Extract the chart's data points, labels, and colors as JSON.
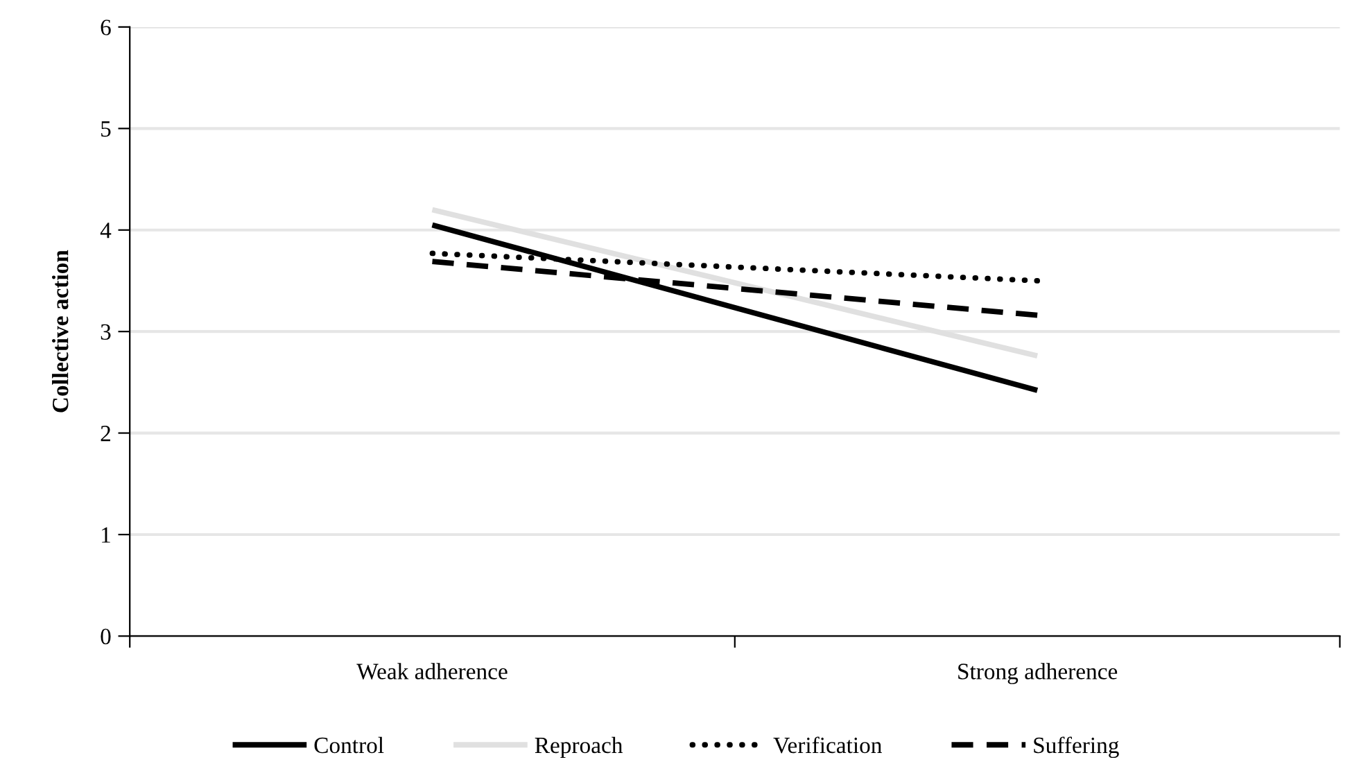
{
  "chart_data": {
    "type": "line",
    "ylabel": "Collective action",
    "categories": [
      "Weak adherence",
      "Strong adherence"
    ],
    "series": [
      {
        "name": "Control",
        "color": "#000000",
        "values": [
          4.05,
          2.42
        ],
        "line_style": "solid"
      },
      {
        "name": "Reproach",
        "color": "#e0e0e0",
        "values": [
          4.2,
          2.76
        ],
        "line_style": "solid"
      },
      {
        "name": "Verification",
        "color": "#000000",
        "values": [
          3.77,
          3.5
        ],
        "line_style": "dotted"
      },
      {
        "name": "Suffering",
        "color": "#000000",
        "values": [
          3.69,
          3.16
        ],
        "line_style": "dashed"
      }
    ],
    "ylim": [
      0,
      6
    ],
    "yticks": [
      0,
      1,
      2,
      3,
      4,
      5,
      6
    ],
    "grid": "y",
    "legend": "bottom",
    "marker": "none"
  }
}
